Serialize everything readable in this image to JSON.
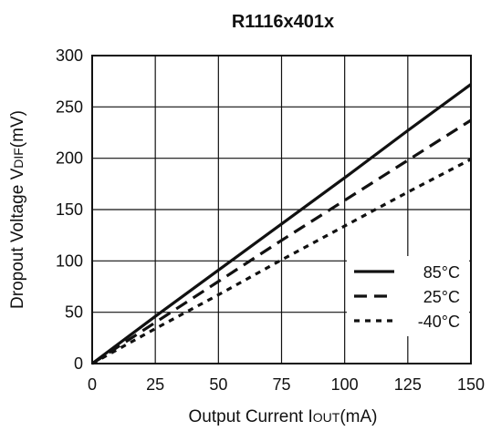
{
  "chart_data": {
    "type": "line",
    "title": "R1116x401x",
    "xlabel": {
      "main": "Output Current I",
      "sub": "OUT",
      "unit": "(mA)"
    },
    "ylabel": {
      "main": "Dropout Voltage V",
      "sub": "DIF",
      "unit": "(mV)"
    },
    "xlim": [
      0,
      150
    ],
    "ylim": [
      0,
      300
    ],
    "x_ticks": [
      "0",
      "25",
      "50",
      "75",
      "100",
      "125",
      "150"
    ],
    "y_ticks": [
      "0",
      "50",
      "100",
      "150",
      "200",
      "250",
      "300"
    ],
    "grid": true,
    "legend_position": "bottom-right",
    "series": [
      {
        "name": "85°C",
        "style": "solid",
        "color": "#111111",
        "x": [
          0,
          25,
          50,
          75,
          100,
          125,
          150
        ],
        "y": [
          0,
          46,
          91,
          136,
          181,
          227,
          272
        ]
      },
      {
        "name": "25°C",
        "style": "dashed",
        "color": "#111111",
        "x": [
          0,
          25,
          50,
          75,
          100,
          125,
          150
        ],
        "y": [
          0,
          40,
          80,
          120,
          159,
          198,
          237
        ]
      },
      {
        "name": "-40°C",
        "style": "dotted",
        "color": "#111111",
        "x": [
          0,
          25,
          50,
          75,
          100,
          125,
          150
        ],
        "y": [
          0,
          34,
          67,
          101,
          134,
          167,
          199
        ]
      }
    ]
  }
}
